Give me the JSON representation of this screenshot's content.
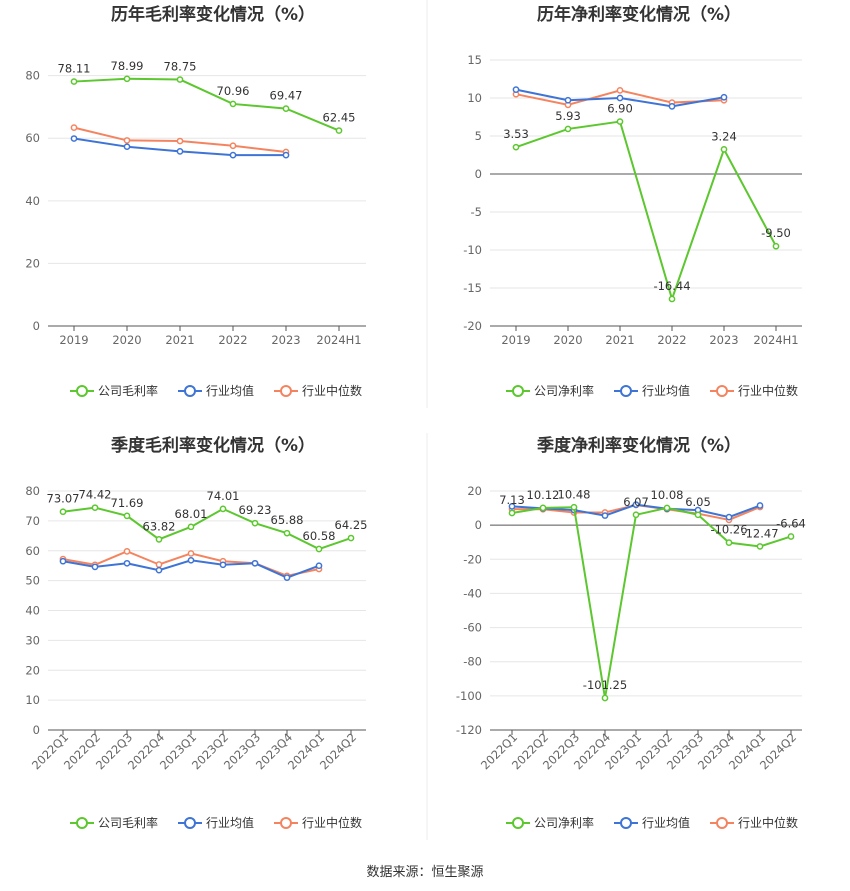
{
  "source_text": "数据来源：恒生聚源",
  "colors": {
    "company": "#5cc72e",
    "avg": "#3e74d6",
    "median": "#f4845f"
  },
  "chart_data": [
    {
      "type": "line",
      "title": "历年毛利率变化情况（%）",
      "x": [
        "2019",
        "2020",
        "2021",
        "2022",
        "2023",
        "2024H1"
      ],
      "ylim": [
        0,
        85
      ],
      "yticks": [
        0,
        20,
        40,
        60,
        80
      ],
      "series": [
        {
          "name": "公司毛利率",
          "values": [
            78.11,
            78.99,
            78.75,
            70.96,
            69.47,
            62.45
          ],
          "labels": [
            "78.11",
            "78.99",
            "78.75",
            "70.96",
            "69.47",
            "62.45"
          ]
        },
        {
          "name": "行业均值",
          "values": [
            59.9,
            57.3,
            55.8,
            54.6,
            54.6,
            null
          ]
        },
        {
          "name": "行业中位数",
          "values": [
            63.4,
            59.3,
            59.1,
            57.6,
            55.6,
            null
          ]
        }
      ],
      "legend": [
        "公司毛利率",
        "行业均值",
        "行业中位数"
      ]
    },
    {
      "type": "line",
      "title": "历年净利率变化情况（%）",
      "x": [
        "2019",
        "2020",
        "2021",
        "2022",
        "2023",
        "2024H1"
      ],
      "ylim": [
        -20,
        15
      ],
      "yticks": [
        -20,
        -15,
        -10,
        -5,
        0,
        5,
        10,
        15
      ],
      "series": [
        {
          "name": "公司净利率",
          "values": [
            3.53,
            5.93,
            6.9,
            -16.44,
            3.24,
            -9.5
          ],
          "labels": [
            "3.53",
            "5.93",
            "6.90",
            "-16.44",
            "3.24",
            "-9.50"
          ]
        },
        {
          "name": "行业均值",
          "values": [
            11.1,
            9.7,
            10.0,
            8.9,
            10.1,
            null
          ]
        },
        {
          "name": "行业中位数",
          "values": [
            10.5,
            9.1,
            11.0,
            9.4,
            9.7,
            null
          ]
        }
      ],
      "legend": [
        "公司净利率",
        "行业均值",
        "行业中位数"
      ]
    },
    {
      "type": "line",
      "title": "季度毛利率变化情况（%）",
      "x": [
        "2022Q1",
        "2022Q2",
        "2022Q3",
        "2022Q4",
        "2023Q1",
        "2023Q2",
        "2023Q3",
        "2023Q4",
        "2024Q1",
        "2024Q2"
      ],
      "ylim": [
        0,
        80
      ],
      "yticks": [
        0,
        10,
        20,
        30,
        40,
        50,
        60,
        70,
        80
      ],
      "series": [
        {
          "name": "公司毛利率",
          "values": [
            73.07,
            74.42,
            71.69,
            63.82,
            68.01,
            74.01,
            69.23,
            65.88,
            60.58,
            64.25
          ],
          "labels": [
            "73.07",
            "74.42",
            "71.69",
            "63.82",
            "68.01",
            "74.01",
            "69.23",
            "65.88",
            "60.58",
            "64.25"
          ]
        },
        {
          "name": "行业均值",
          "values": [
            56.5,
            54.6,
            55.8,
            53.5,
            56.8,
            55.3,
            55.8,
            51.0,
            55.0,
            null
          ]
        },
        {
          "name": "行业中位数",
          "values": [
            57.2,
            55.3,
            59.8,
            55.4,
            59.1,
            56.5,
            55.8,
            51.6,
            53.9,
            null
          ]
        }
      ],
      "legend": [
        "公司毛利率",
        "行业均值",
        "行业中位数"
      ]
    },
    {
      "type": "line",
      "title": "季度净利率变化情况（%）",
      "x": [
        "2022Q1",
        "2022Q2",
        "2022Q3",
        "2022Q4",
        "2023Q1",
        "2023Q2",
        "2023Q3",
        "2023Q4",
        "2024Q1",
        "2024Q2"
      ],
      "ylim": [
        -120,
        20
      ],
      "yticks": [
        -120,
        -100,
        -80,
        -60,
        -40,
        -20,
        0,
        20
      ],
      "series": [
        {
          "name": "公司净利率",
          "values": [
            7.13,
            10.12,
            10.48,
            -101.25,
            6.07,
            10.08,
            6.05,
            -10.26,
            -12.47,
            -6.64
          ],
          "labels": [
            "7.13",
            "10.12",
            "10.48",
            "-101.25",
            "6.07",
            "10.08",
            "6.05",
            "-10.26",
            "-12.47",
            "-6.64"
          ]
        },
        {
          "name": "行业均值",
          "values": [
            11.0,
            9.8,
            8.8,
            5.6,
            12.0,
            9.6,
            8.8,
            4.7,
            11.5,
            null
          ]
        },
        {
          "name": "行业中位数",
          "values": [
            9.4,
            9.3,
            7.4,
            7.4,
            11.8,
            9.3,
            6.7,
            3.1,
            10.6,
            null
          ]
        }
      ],
      "legend": [
        "公司净利率",
        "行业均值",
        "行业中位数"
      ]
    }
  ]
}
